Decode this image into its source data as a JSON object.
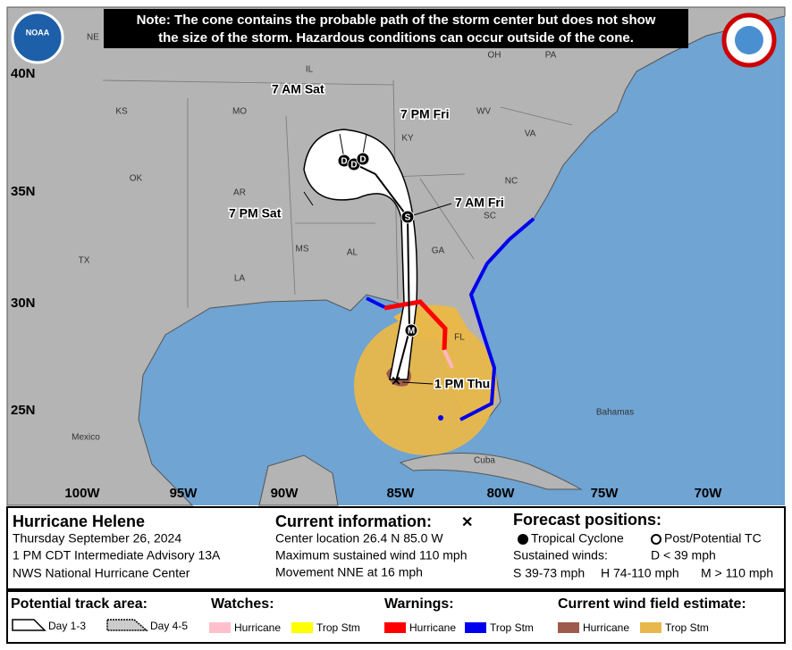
{
  "header": {
    "note_lines": [
      "Note: The cone contains the probable path of the storm center but does not show",
      "the size of the storm. Hazardous conditions can occur outside of the cone."
    ],
    "noaa_logo": "NOAA"
  },
  "map": {
    "lat_labels": [
      "40N",
      "35N",
      "30N",
      "25N"
    ],
    "lon_labels": [
      "100W",
      "95W",
      "90W",
      "85W",
      "80W",
      "75W",
      "70W"
    ],
    "places": [
      "NE",
      "IL",
      "OH",
      "PA",
      "KS",
      "MO",
      "KY",
      "WV",
      "VA",
      "OK",
      "AR",
      "NC",
      "SC",
      "MS",
      "AL",
      "GA",
      "TX",
      "LA",
      "FL",
      "Mexico",
      "Cuba",
      "Bahamas"
    ],
    "forecast_labels": [
      "7 AM Sat",
      "7 PM Fri",
      "7 AM Fri",
      "7 PM Sat",
      "1 PM Thu"
    ],
    "point_letters": [
      "S",
      "M",
      "D",
      "D",
      "D"
    ]
  },
  "storm": {
    "name": "Hurricane Helene",
    "date": "Thursday September 26, 2024",
    "advisory": "1 PM CDT Intermediate Advisory 13A",
    "office": "NWS National Hurricane Center"
  },
  "current": {
    "title": "Current information:",
    "symbol": "✕",
    "lines": [
      "Center location 26.4 N 85.0 W",
      "Maximum sustained wind 110 mph",
      "Movement NNE at 16 mph"
    ]
  },
  "forecast": {
    "title": "Forecast positions:",
    "tropical": "Tropical Cyclone",
    "post": "Post/Potential TC",
    "winds": "Sustained winds:",
    "d": "D < 39 mph",
    "s": "S 39-73 mph",
    "h": "H 74-110 mph",
    "m": "M > 110 mph"
  },
  "legend": {
    "track": {
      "title": "Potential track area:",
      "items": [
        "Day 1-3",
        "Day 4-5"
      ]
    },
    "watches": {
      "title": "Watches:",
      "items": [
        "Hurricane",
        "Trop Stm"
      ]
    },
    "warnings": {
      "title": "Warnings:",
      "items": [
        "Hurricane",
        "Trop Stm"
      ]
    },
    "wind": {
      "title": "Current wind field estimate:",
      "items": [
        "Hurricane",
        "Trop Stm"
      ]
    }
  }
}
